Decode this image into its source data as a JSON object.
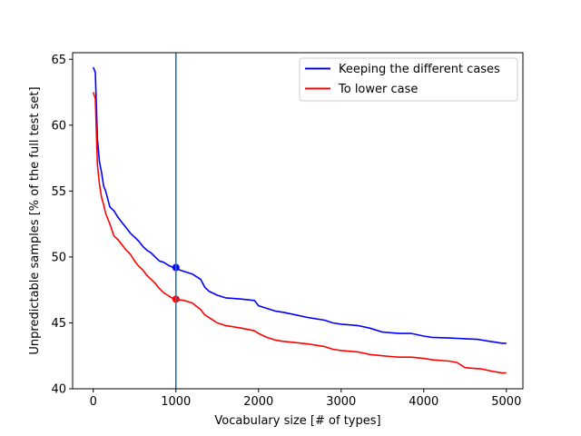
{
  "chart_data": {
    "type": "line",
    "title": "",
    "xlabel": "Vocabulary size [# of types]",
    "ylabel": "Unpredictable samples [% of the full test set]",
    "xlim": [
      -250,
      5200
    ],
    "ylim": [
      40,
      65.5
    ],
    "xticks": [
      0,
      1000,
      2000,
      3000,
      4000,
      5000
    ],
    "yticks": [
      40,
      45,
      50,
      55,
      60,
      65
    ],
    "grid": false,
    "legend_position": "top-right",
    "vline": {
      "x": 1000,
      "color": "#1f77b4"
    },
    "series": [
      {
        "name": "Keeping the different cases",
        "color": "#0000ff",
        "x": [
          0,
          25,
          50,
          75,
          100,
          125,
          150,
          200,
          250,
          300,
          350,
          400,
          450,
          500,
          550,
          600,
          650,
          700,
          750,
          800,
          850,
          900,
          950,
          1000,
          1050,
          1100,
          1200,
          1300,
          1350,
          1400,
          1500,
          1600,
          1800,
          1950,
          2000,
          2100,
          2200,
          2300,
          2450,
          2600,
          2800,
          2900,
          3000,
          3200,
          3350,
          3500,
          3600,
          3700,
          3850,
          4000,
          4100,
          4300,
          4500,
          4650,
          4800,
          4900,
          4950,
          5000
        ],
        "y": [
          64.4,
          64.0,
          59.0,
          57.2,
          56.4,
          55.4,
          55.0,
          53.8,
          53.5,
          53.0,
          52.6,
          52.2,
          51.8,
          51.5,
          51.2,
          50.8,
          50.5,
          50.3,
          50.0,
          49.7,
          49.6,
          49.4,
          49.25,
          49.2,
          49.0,
          48.9,
          48.7,
          48.3,
          47.7,
          47.4,
          47.1,
          46.9,
          46.8,
          46.7,
          46.3,
          46.1,
          45.9,
          45.8,
          45.6,
          45.4,
          45.2,
          45.0,
          44.9,
          44.8,
          44.6,
          44.3,
          44.25,
          44.2,
          44.2,
          44.0,
          43.9,
          43.85,
          43.8,
          43.75,
          43.6,
          43.5,
          43.45,
          43.45
        ]
      },
      {
        "name": "To lower case",
        "color": "#ff0000",
        "x": [
          0,
          25,
          50,
          75,
          100,
          125,
          150,
          200,
          250,
          300,
          350,
          400,
          450,
          500,
          550,
          600,
          650,
          700,
          750,
          800,
          850,
          900,
          950,
          1000,
          1050,
          1100,
          1200,
          1300,
          1350,
          1400,
          1500,
          1600,
          1800,
          1950,
          2000,
          2100,
          2200,
          2300,
          2450,
          2600,
          2800,
          2900,
          3000,
          3200,
          3350,
          3500,
          3600,
          3700,
          3850,
          4000,
          4100,
          4300,
          4400,
          4500,
          4700,
          4850,
          4950,
          5000
        ],
        "y": [
          62.5,
          62.0,
          57.0,
          55.5,
          54.5,
          54.0,
          53.3,
          52.5,
          51.6,
          51.3,
          50.9,
          50.5,
          50.2,
          49.7,
          49.3,
          49.0,
          48.6,
          48.3,
          48.0,
          47.6,
          47.3,
          47.1,
          46.9,
          46.8,
          46.75,
          46.7,
          46.5,
          46.0,
          45.6,
          45.4,
          45.0,
          44.8,
          44.6,
          44.4,
          44.2,
          43.9,
          43.7,
          43.6,
          43.5,
          43.4,
          43.2,
          43.0,
          42.9,
          42.8,
          42.6,
          42.5,
          42.45,
          42.4,
          42.4,
          42.3,
          42.2,
          42.1,
          42.0,
          41.6,
          41.5,
          41.3,
          41.2,
          41.2
        ]
      }
    ],
    "markers": [
      {
        "series": "Keeping the different cases",
        "x": 1000,
        "y": 49.2
      },
      {
        "series": "To lower case",
        "x": 1000,
        "y": 46.8
      }
    ]
  }
}
